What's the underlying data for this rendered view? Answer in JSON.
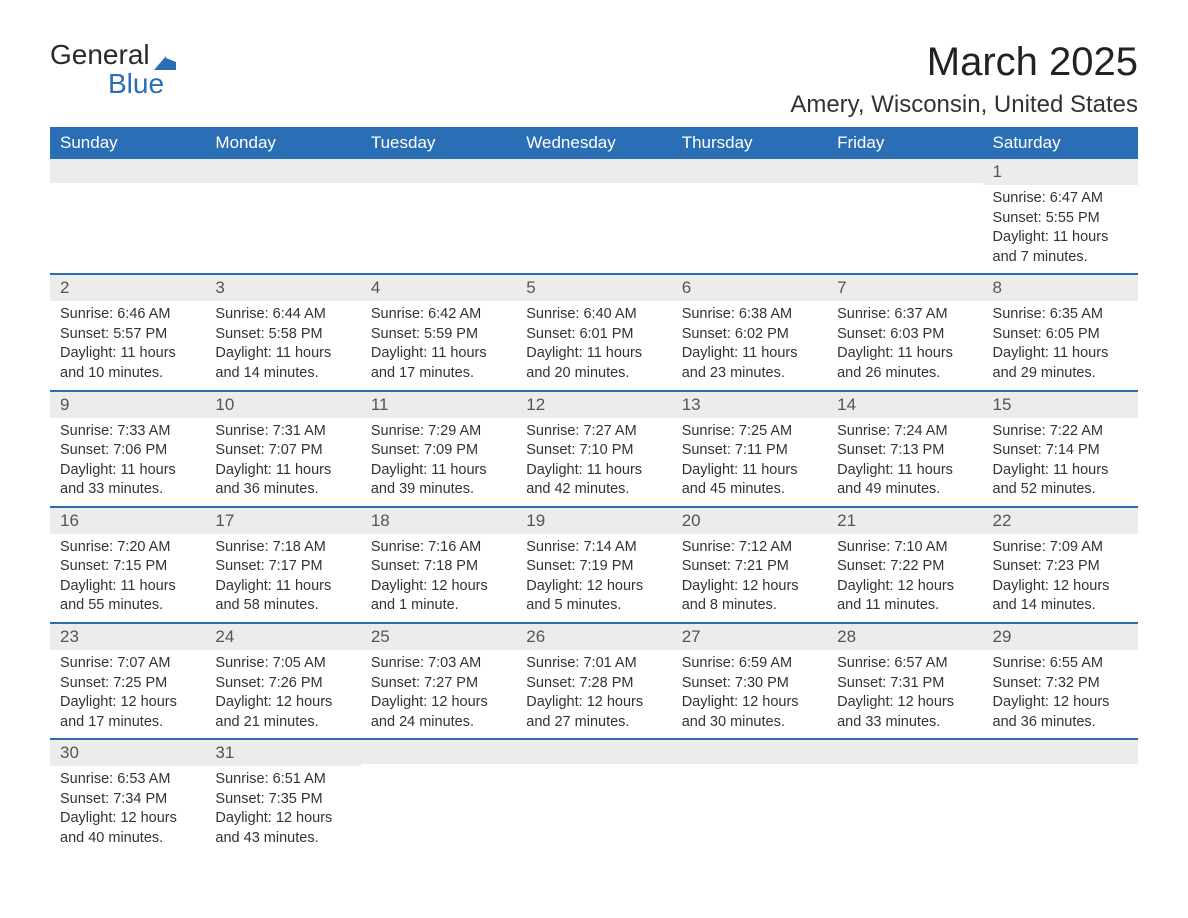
{
  "logo": {
    "word1": "General",
    "word2": "Blue",
    "brand_color": "#2a6fb5"
  },
  "title": "March 2025",
  "location": "Amery, Wisconsin, United States",
  "colors": {
    "header_bg": "#2a6fb5",
    "header_text": "#ffffff",
    "daynum_bg": "#ececec",
    "daynum_text": "#555555",
    "body_text": "#333333",
    "row_divider": "#2a6fb5"
  },
  "typography": {
    "month_title_fontsize": 40,
    "location_fontsize": 24,
    "weekday_fontsize": 17,
    "daynum_fontsize": 17,
    "body_fontsize": 14.5
  },
  "layout": {
    "columns": 7,
    "rows": 6,
    "first_weekday": "Sunday"
  },
  "weekdays": [
    "Sunday",
    "Monday",
    "Tuesday",
    "Wednesday",
    "Thursday",
    "Friday",
    "Saturday"
  ],
  "labels": {
    "sunrise": "Sunrise: ",
    "sunset": "Sunset: ",
    "daylight": "Daylight: "
  },
  "weeks": [
    [
      {
        "blank": true
      },
      {
        "blank": true
      },
      {
        "blank": true
      },
      {
        "blank": true
      },
      {
        "blank": true
      },
      {
        "blank": true
      },
      {
        "day": 1,
        "sunrise": "6:47 AM",
        "sunset": "5:55 PM",
        "daylight": "11 hours and 7 minutes."
      }
    ],
    [
      {
        "day": 2,
        "sunrise": "6:46 AM",
        "sunset": "5:57 PM",
        "daylight": "11 hours and 10 minutes."
      },
      {
        "day": 3,
        "sunrise": "6:44 AM",
        "sunset": "5:58 PM",
        "daylight": "11 hours and 14 minutes."
      },
      {
        "day": 4,
        "sunrise": "6:42 AM",
        "sunset": "5:59 PM",
        "daylight": "11 hours and 17 minutes."
      },
      {
        "day": 5,
        "sunrise": "6:40 AM",
        "sunset": "6:01 PM",
        "daylight": "11 hours and 20 minutes."
      },
      {
        "day": 6,
        "sunrise": "6:38 AM",
        "sunset": "6:02 PM",
        "daylight": "11 hours and 23 minutes."
      },
      {
        "day": 7,
        "sunrise": "6:37 AM",
        "sunset": "6:03 PM",
        "daylight": "11 hours and 26 minutes."
      },
      {
        "day": 8,
        "sunrise": "6:35 AM",
        "sunset": "6:05 PM",
        "daylight": "11 hours and 29 minutes."
      }
    ],
    [
      {
        "day": 9,
        "sunrise": "7:33 AM",
        "sunset": "7:06 PM",
        "daylight": "11 hours and 33 minutes."
      },
      {
        "day": 10,
        "sunrise": "7:31 AM",
        "sunset": "7:07 PM",
        "daylight": "11 hours and 36 minutes."
      },
      {
        "day": 11,
        "sunrise": "7:29 AM",
        "sunset": "7:09 PM",
        "daylight": "11 hours and 39 minutes."
      },
      {
        "day": 12,
        "sunrise": "7:27 AM",
        "sunset": "7:10 PM",
        "daylight": "11 hours and 42 minutes."
      },
      {
        "day": 13,
        "sunrise": "7:25 AM",
        "sunset": "7:11 PM",
        "daylight": "11 hours and 45 minutes."
      },
      {
        "day": 14,
        "sunrise": "7:24 AM",
        "sunset": "7:13 PM",
        "daylight": "11 hours and 49 minutes."
      },
      {
        "day": 15,
        "sunrise": "7:22 AM",
        "sunset": "7:14 PM",
        "daylight": "11 hours and 52 minutes."
      }
    ],
    [
      {
        "day": 16,
        "sunrise": "7:20 AM",
        "sunset": "7:15 PM",
        "daylight": "11 hours and 55 minutes."
      },
      {
        "day": 17,
        "sunrise": "7:18 AM",
        "sunset": "7:17 PM",
        "daylight": "11 hours and 58 minutes."
      },
      {
        "day": 18,
        "sunrise": "7:16 AM",
        "sunset": "7:18 PM",
        "daylight": "12 hours and 1 minute."
      },
      {
        "day": 19,
        "sunrise": "7:14 AM",
        "sunset": "7:19 PM",
        "daylight": "12 hours and 5 minutes."
      },
      {
        "day": 20,
        "sunrise": "7:12 AM",
        "sunset": "7:21 PM",
        "daylight": "12 hours and 8 minutes."
      },
      {
        "day": 21,
        "sunrise": "7:10 AM",
        "sunset": "7:22 PM",
        "daylight": "12 hours and 11 minutes."
      },
      {
        "day": 22,
        "sunrise": "7:09 AM",
        "sunset": "7:23 PM",
        "daylight": "12 hours and 14 minutes."
      }
    ],
    [
      {
        "day": 23,
        "sunrise": "7:07 AM",
        "sunset": "7:25 PM",
        "daylight": "12 hours and 17 minutes."
      },
      {
        "day": 24,
        "sunrise": "7:05 AM",
        "sunset": "7:26 PM",
        "daylight": "12 hours and 21 minutes."
      },
      {
        "day": 25,
        "sunrise": "7:03 AM",
        "sunset": "7:27 PM",
        "daylight": "12 hours and 24 minutes."
      },
      {
        "day": 26,
        "sunrise": "7:01 AM",
        "sunset": "7:28 PM",
        "daylight": "12 hours and 27 minutes."
      },
      {
        "day": 27,
        "sunrise": "6:59 AM",
        "sunset": "7:30 PM",
        "daylight": "12 hours and 30 minutes."
      },
      {
        "day": 28,
        "sunrise": "6:57 AM",
        "sunset": "7:31 PM",
        "daylight": "12 hours and 33 minutes."
      },
      {
        "day": 29,
        "sunrise": "6:55 AM",
        "sunset": "7:32 PM",
        "daylight": "12 hours and 36 minutes."
      }
    ],
    [
      {
        "day": 30,
        "sunrise": "6:53 AM",
        "sunset": "7:34 PM",
        "daylight": "12 hours and 40 minutes."
      },
      {
        "day": 31,
        "sunrise": "6:51 AM",
        "sunset": "7:35 PM",
        "daylight": "12 hours and 43 minutes."
      },
      {
        "blank": true
      },
      {
        "blank": true
      },
      {
        "blank": true
      },
      {
        "blank": true
      },
      {
        "blank": true
      }
    ]
  ]
}
